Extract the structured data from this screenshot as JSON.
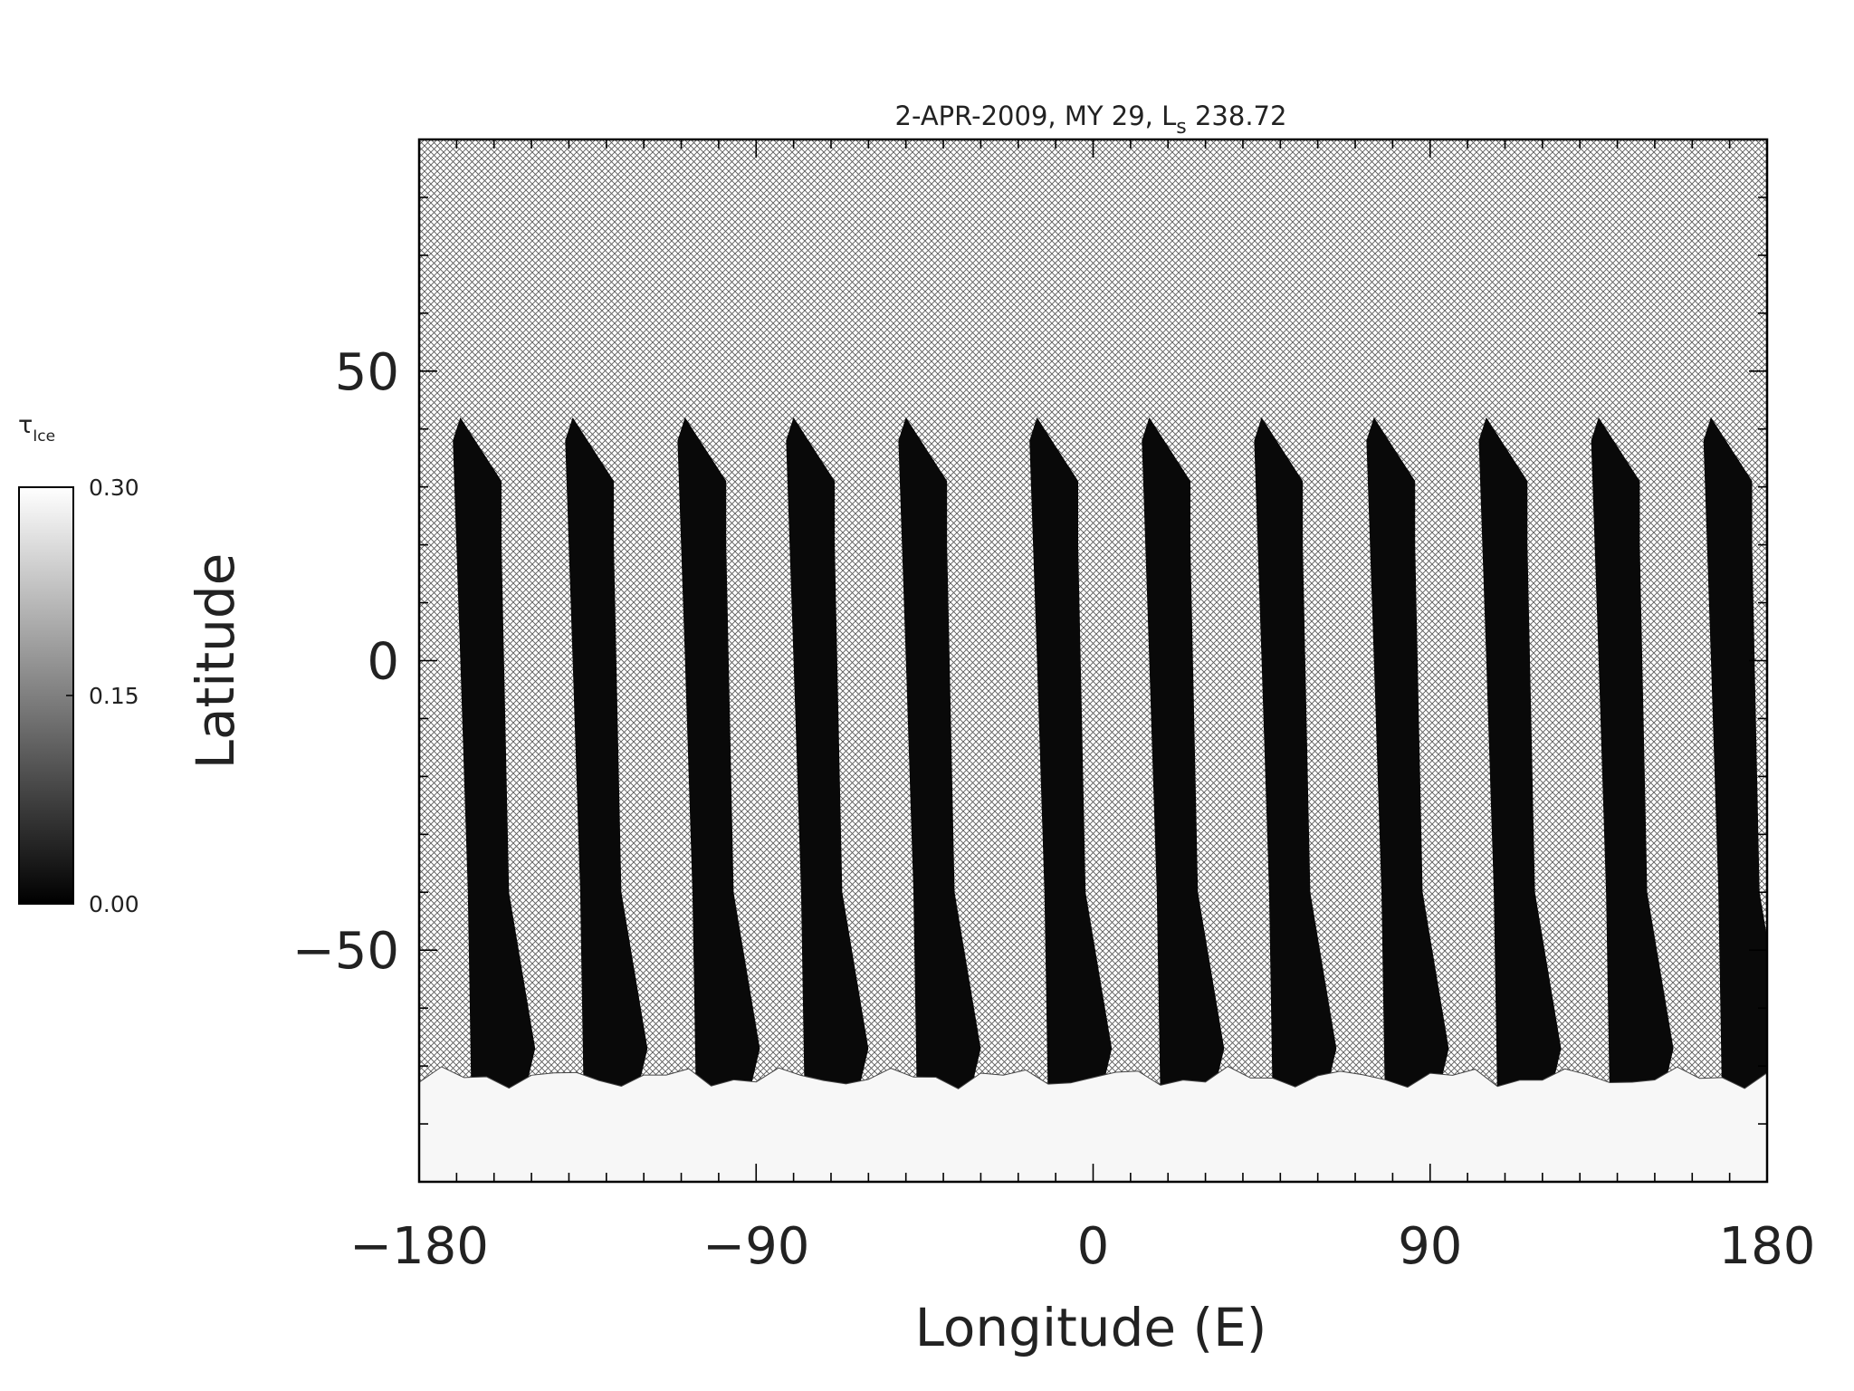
{
  "chart_data": {
    "type": "heatmap",
    "title_main": "2-APR-2009, MY 29,  L",
    "title_sub": "s",
    "title_tail": " 238.72",
    "xlabel": "Longitude (E)",
    "ylabel": "Latitude",
    "xlim": [
      -180,
      180
    ],
    "ylim": [
      -90,
      90
    ],
    "xticks": [
      -180,
      -90,
      0,
      90,
      180
    ],
    "xtick_labels": [
      "−180",
      "−90",
      "0",
      "90",
      "180"
    ],
    "yticks": [
      50,
      0,
      -50
    ],
    "ytick_labels": [
      "50",
      "0",
      "−50"
    ],
    "colorbar": {
      "label": "τ",
      "label_sub": "Ice",
      "min": 0.0,
      "max": 0.3,
      "ticks": [
        0.3,
        0.15,
        0.0
      ],
      "tick_labels": [
        "0.30",
        "0.15",
        "0.00"
      ]
    },
    "missing_data_pattern": "crosshatch",
    "swaths": [
      {
        "west_lon": -169,
        "value": 0.01
      },
      {
        "west_lon": -139,
        "value": 0.01
      },
      {
        "west_lon": -109,
        "value": 0.01
      },
      {
        "west_lon": -80,
        "value": 0.01
      },
      {
        "west_lon": -50,
        "value": 0.01
      },
      {
        "west_lon": -15,
        "value": 0.01
      },
      {
        "west_lon": 15,
        "value": 0.01
      },
      {
        "west_lon": 45,
        "value": 0.01
      },
      {
        "west_lon": 75,
        "value": 0.01
      },
      {
        "west_lon": 105,
        "value": 0.01
      },
      {
        "west_lon": 135,
        "value": 0.01
      },
      {
        "west_lon": 165,
        "value": 0.01
      }
    ],
    "south_polar_band": {
      "lat_north": -72,
      "lat_south": -90,
      "value": 0.29
    }
  }
}
